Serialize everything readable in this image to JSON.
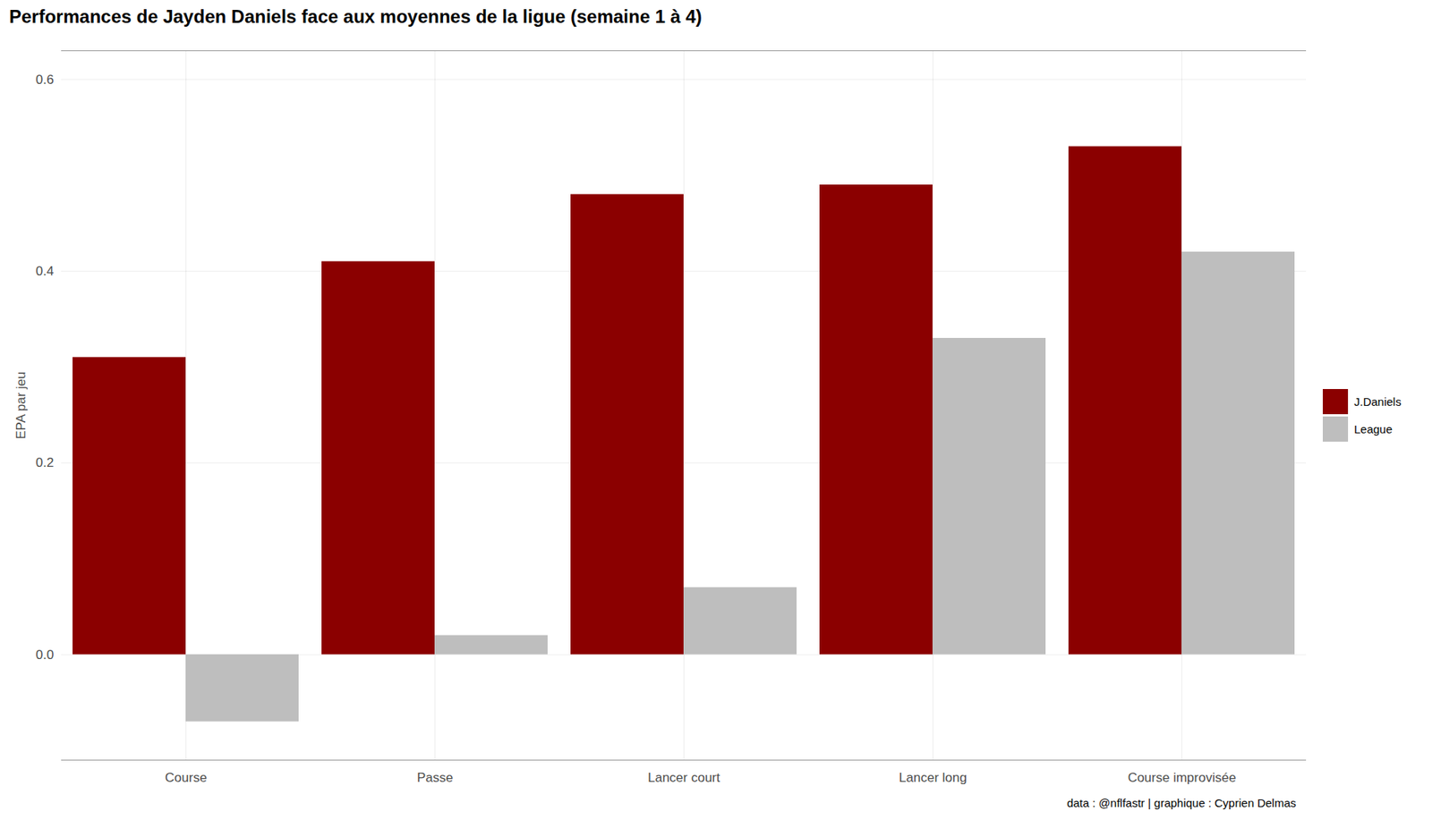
{
  "chart_data": {
    "type": "bar",
    "title": "Performances de Jayden Daniels face aux moyennes de la ligue (semaine 1 à 4)",
    "caption": "data : @nflfastr | graphique : Cyprien Delmas",
    "y_label": "EPA par jeu",
    "categories": [
      "Course",
      "Passe",
      "Lancer court",
      "Lancer long",
      "Course improvisée"
    ],
    "series": [
      {
        "name": "J.Daniels",
        "color": "#8b0000",
        "values": [
          0.31,
          0.41,
          0.48,
          0.49,
          0.53
        ]
      },
      {
        "name": "League",
        "color": "#bebebe",
        "values": [
          -0.07,
          0.02,
          0.07,
          0.33,
          0.42
        ]
      }
    ],
    "ylim": [
      -0.11,
      0.63
    ],
    "yticks": [
      {
        "value": 0,
        "label": "0.0"
      },
      {
        "value": 0.2,
        "label": "0.2"
      },
      {
        "value": 0.4,
        "label": "0.4"
      },
      {
        "value": 0.6,
        "label": "0.6"
      }
    ],
    "grid": true,
    "legend": "right"
  }
}
